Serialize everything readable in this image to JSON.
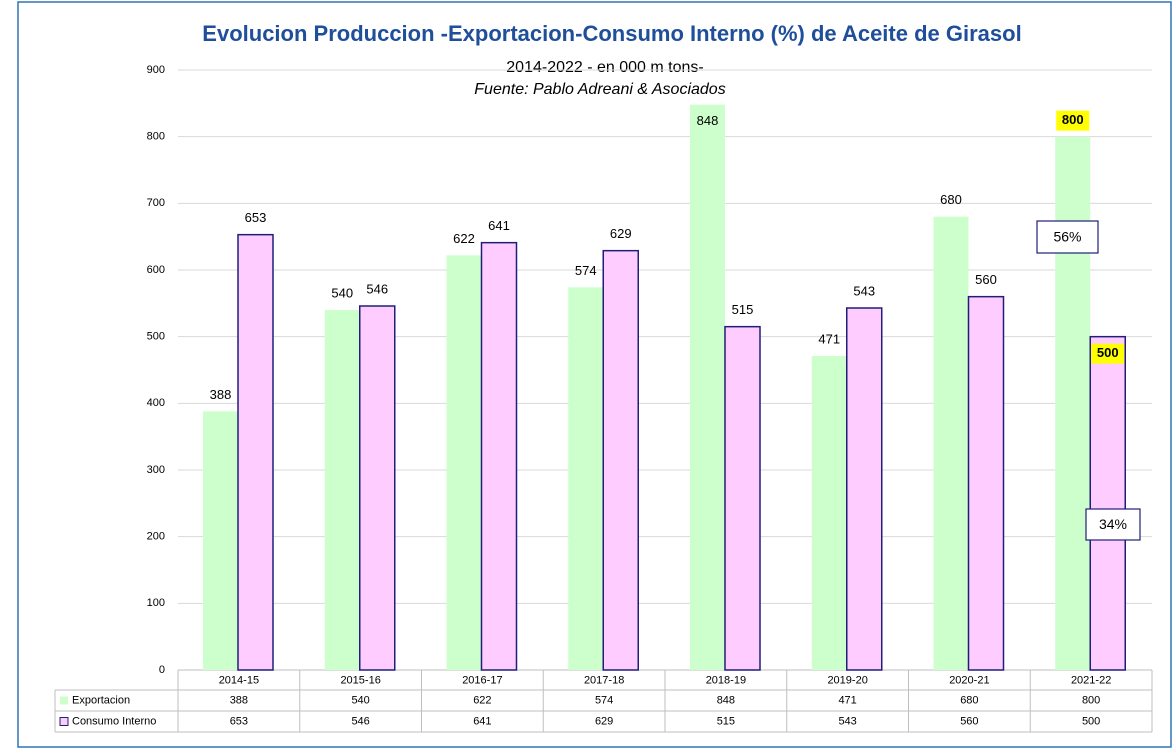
{
  "chart_data": {
    "type": "bar",
    "title": "Evolucion Produccion -Exportacion-Consumo Interno (%)  de Aceite de Girasol",
    "subtitle": "2014-2022 - en 000 m tons-",
    "source": "Fuente: Pablo Adreani & Asociados",
    "categories": [
      "2014-15",
      "2015-16",
      "2016-17",
      "2017-18",
      "2018-19",
      "2019-20",
      "2020-21",
      "2021-22"
    ],
    "series": [
      {
        "name": "Exportacion",
        "color": "#ccffcc",
        "values": [
          388,
          540,
          622,
          574,
          848,
          471,
          680,
          800
        ]
      },
      {
        "name": "Consumo Interno",
        "color": "#ffccff",
        "values": [
          653,
          546,
          641,
          629,
          515,
          543,
          560,
          500
        ]
      }
    ],
    "annotations": [
      "56%",
      "34%"
    ],
    "highlight_color": "#ffff00",
    "ylim": [
      0,
      900
    ],
    "yticks": [
      0,
      100,
      200,
      300,
      400,
      500,
      600,
      700,
      800,
      900
    ],
    "grid": true
  }
}
